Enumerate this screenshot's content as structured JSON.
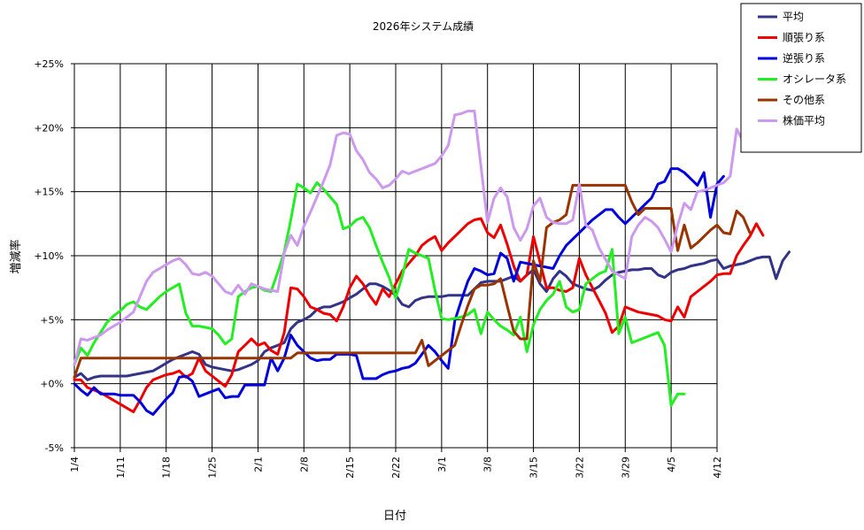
{
  "chart_data": {
    "type": "line",
    "title": "2026年システム成績",
    "xlabel": "日付",
    "ylabel": "増減率",
    "x_start": "1/4",
    "x_step_days": 1,
    "x_ticks": [
      "1/4",
      "1/11",
      "1/18",
      "1/25",
      "2/1",
      "2/8",
      "2/15",
      "2/22",
      "3/1",
      "3/8",
      "3/15",
      "3/22",
      "3/29",
      "4/5",
      "4/12"
    ],
    "y_ticks": [
      "+25%",
      "+20%",
      "+15%",
      "+10%",
      "+5%",
      "+0%",
      "-5%"
    ],
    "ylim": [
      -5,
      25
    ],
    "grid": true,
    "legend_position": "top-right",
    "series": [
      {
        "name": "平均",
        "color": "#333388",
        "values": [
          0.5,
          0.8,
          0.3,
          0.5,
          0.6,
          0.6,
          0.6,
          0.6,
          0.6,
          0.7,
          0.8,
          0.9,
          1.0,
          1.3,
          1.6,
          1.9,
          2.1,
          2.3,
          2.5,
          2.3,
          1.5,
          1.3,
          1.2,
          1.1,
          1.0,
          1.1,
          1.3,
          1.5,
          1.8,
          2.5,
          2.8,
          3.0,
          3.2,
          4.3,
          4.8,
          5.0,
          5.3,
          5.8,
          6.0,
          6.0,
          6.2,
          6.4,
          6.7,
          7.0,
          7.4,
          7.8,
          7.8,
          7.6,
          7.3,
          6.9,
          6.2,
          6.0,
          6.5,
          6.7,
          6.8,
          6.8,
          6.8,
          6.9,
          6.9,
          6.9,
          6.9,
          7.4,
          7.9,
          8.0,
          8.0,
          8.0,
          8.2,
          8.4,
          8.0,
          8.5,
          8.9,
          7.8,
          7.2,
          8.2,
          8.8,
          8.4,
          7.8,
          7.6,
          7.4,
          7.3,
          7.6,
          8.1,
          8.5,
          8.7,
          8.8,
          8.9,
          8.9,
          9.0,
          9.0,
          8.5,
          8.3,
          8.7,
          8.9,
          9.0,
          9.2,
          9.3,
          9.4,
          9.6,
          9.7,
          9.0,
          9.2,
          9.3,
          9.4,
          9.6,
          9.8,
          9.9,
          9.9,
          8.2,
          9.6,
          10.3
        ]
      },
      {
        "name": "順張り系",
        "color": "#ee0000",
        "values": [
          0.3,
          0.3,
          -0.3,
          -0.5,
          -0.7,
          -1.0,
          -1.3,
          -1.6,
          -1.9,
          -2.2,
          -1.3,
          -0.3,
          0.3,
          0.5,
          0.7,
          0.8,
          1.0,
          0.5,
          0.8,
          2.0,
          1.0,
          0.6,
          0.2,
          -0.2,
          0.7,
          2.5,
          3.0,
          3.5,
          3.0,
          3.2,
          2.6,
          2.3,
          4.0,
          7.5,
          7.4,
          6.8,
          6.0,
          5.8,
          5.5,
          5.4,
          4.9,
          6.0,
          7.5,
          8.4,
          7.8,
          6.9,
          6.2,
          7.4,
          6.8,
          7.8,
          8.8,
          9.4,
          10.0,
          10.8,
          11.2,
          11.5,
          10.4,
          11.0,
          11.5,
          12.0,
          12.5,
          12.8,
          12.9,
          11.8,
          11.4,
          12.4,
          10.9,
          9.2,
          8.0,
          8.5,
          11.5,
          9.5,
          7.5,
          7.5,
          7.3,
          7.2,
          7.5,
          9.8,
          8.5,
          7.5,
          6.5,
          5.5,
          4.0,
          4.5,
          6.0,
          5.8,
          5.6,
          5.5,
          5.4,
          5.3,
          5.0,
          4.9,
          6.0,
          5.2,
          6.8,
          7.2,
          7.6,
          8.0,
          8.5,
          8.6,
          8.6,
          10.0,
          10.8,
          11.5,
          12.5,
          11.6
        ]
      },
      {
        "name": "逆張り系",
        "color": "#0000dd",
        "values": [
          0.0,
          -0.5,
          -0.9,
          -0.3,
          -0.8,
          -0.8,
          -0.8,
          -0.9,
          -0.9,
          -0.9,
          -1.4,
          -2.1,
          -2.4,
          -1.8,
          -1.2,
          -0.7,
          0.5,
          0.6,
          0.2,
          -1.0,
          -0.8,
          -0.6,
          -0.4,
          -1.1,
          -1.0,
          -1.0,
          -0.1,
          -0.1,
          -0.1,
          -0.1,
          2.0,
          1.0,
          2.0,
          3.8,
          3.0,
          2.5,
          2.0,
          1.8,
          1.9,
          1.9,
          2.3,
          2.3,
          2.3,
          2.2,
          0.4,
          0.4,
          0.4,
          0.7,
          0.9,
          1.0,
          1.2,
          1.3,
          1.6,
          2.3,
          3.0,
          2.5,
          1.8,
          1.2,
          4.9,
          6.5,
          8.0,
          9.0,
          8.8,
          8.5,
          8.6,
          10.2,
          9.8,
          8.0,
          9.5,
          9.4,
          9.3,
          9.2,
          9.1,
          9.0,
          10.0,
          10.8,
          11.3,
          11.8,
          12.3,
          12.8,
          13.2,
          13.6,
          13.6,
          13.0,
          12.5,
          13.0,
          13.5,
          14.0,
          14.5,
          15.6,
          15.8,
          16.8,
          16.8,
          16.5,
          16.0,
          15.5,
          16.5,
          13.0,
          15.6,
          16.2
        ]
      },
      {
        "name": "オシレータ系",
        "color": "#22ee22",
        "values": [
          1.5,
          2.8,
          2.2,
          3.2,
          4.0,
          4.8,
          5.3,
          5.7,
          6.2,
          6.4,
          6.0,
          5.8,
          6.3,
          6.8,
          7.2,
          7.5,
          7.8,
          5.5,
          4.5,
          4.5,
          4.4,
          4.3,
          3.8,
          3.1,
          3.5,
          6.8,
          7.2,
          7.5,
          7.6,
          7.3,
          7.2,
          8.7,
          10.3,
          12.8,
          15.6,
          15.3,
          14.9,
          15.7,
          15.2,
          14.6,
          14.0,
          12.1,
          12.3,
          12.8,
          13.0,
          12.2,
          10.8,
          9.5,
          8.3,
          6.7,
          8.4,
          10.5,
          10.2,
          10.0,
          9.8,
          7.3,
          5.1,
          5.0,
          5.1,
          5.2,
          5.4,
          5.8,
          3.9,
          5.6,
          5.0,
          4.5,
          4.2,
          3.8,
          5.2,
          2.5,
          4.6,
          5.8,
          6.5,
          7.0,
          8.0,
          6.0,
          5.6,
          5.8,
          7.8,
          8.2,
          8.6,
          8.8,
          10.5,
          3.9,
          5.2,
          3.2,
          3.4,
          3.6,
          3.8,
          4.0,
          3.0,
          -1.7,
          -0.8,
          -0.8
        ]
      },
      {
        "name": "その他系",
        "color": "#993300",
        "values": [
          0.5,
          2.0,
          2.0,
          2.0,
          2.0,
          2.0,
          2.0,
          2.0,
          2.0,
          2.0,
          2.0,
          2.0,
          2.0,
          2.0,
          2.0,
          2.0,
          2.0,
          2.0,
          2.0,
          2.0,
          2.0,
          2.0,
          2.0,
          2.0,
          2.0,
          2.0,
          2.0,
          2.0,
          2.0,
          2.0,
          2.0,
          2.0,
          2.0,
          2.0,
          2.4,
          2.4,
          2.4,
          2.4,
          2.4,
          2.4,
          2.4,
          2.4,
          2.4,
          2.4,
          2.4,
          2.4,
          2.4,
          2.4,
          2.4,
          2.4,
          2.4,
          2.4,
          2.4,
          3.4,
          1.4,
          1.8,
          2.2,
          2.6,
          3.0,
          4.6,
          6.1,
          7.4,
          7.7,
          7.7,
          7.8,
          8.2,
          6.1,
          4.1,
          3.5,
          3.5,
          9.6,
          8.0,
          12.2,
          12.6,
          12.8,
          13.2,
          15.5,
          15.5,
          15.5,
          15.5,
          15.5,
          15.5,
          15.5,
          15.5,
          15.5,
          14.2,
          13.2,
          13.7,
          13.7,
          13.7,
          13.7,
          13.7,
          10.4,
          12.4,
          10.6,
          11.0,
          11.5,
          12.0,
          12.4,
          11.8,
          11.7,
          13.5,
          13.0,
          11.8
        ]
      },
      {
        "name": "株価平均",
        "color": "#cc99ee",
        "values": [
          1.5,
          3.5,
          3.4,
          3.6,
          3.8,
          4.2,
          4.5,
          4.8,
          5.2,
          5.6,
          6.8,
          8.0,
          8.7,
          9.0,
          9.3,
          9.6,
          9.8,
          9.3,
          8.6,
          8.5,
          8.7,
          8.4,
          7.8,
          7.2,
          7.0,
          7.7,
          7.0,
          7.8,
          7.6,
          7.4,
          7.3,
          7.2,
          10.2,
          11.6,
          10.8,
          12.3,
          13.4,
          14.6,
          15.8,
          17.1,
          19.4,
          19.6,
          19.5,
          18.2,
          17.5,
          16.5,
          16.0,
          15.3,
          15.5,
          16.0,
          16.6,
          16.4,
          16.6,
          16.8,
          17.0,
          17.2,
          17.8,
          18.6,
          21.0,
          21.1,
          21.3,
          21.3,
          17.0,
          12.6,
          14.5,
          15.3,
          14.6,
          12.2,
          11.2,
          12.1,
          13.9,
          14.5,
          13.0,
          12.6,
          12.5,
          12.5,
          12.8,
          15.6,
          12.4,
          12.0,
          10.6,
          9.7,
          8.8,
          8.5,
          8.2,
          11.5,
          12.4,
          13.0,
          12.7,
          12.2,
          11.3,
          10.3,
          12.4,
          14.1,
          13.6,
          15.0,
          15.1,
          15.3,
          15.5,
          15.7,
          16.2,
          19.9,
          18.9,
          18.9
        ]
      }
    ]
  }
}
